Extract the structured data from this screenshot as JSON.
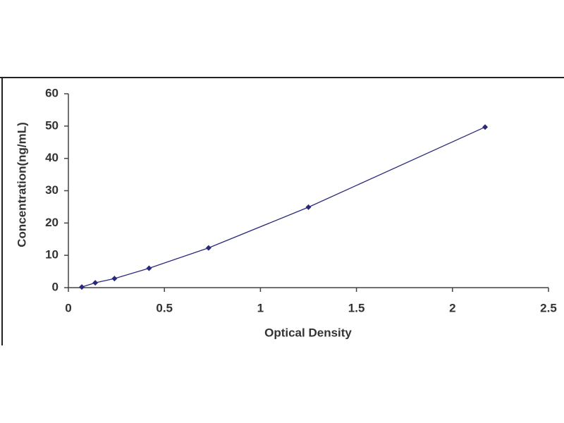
{
  "chart_data": {
    "type": "scatter",
    "x_label": "Optical Density",
    "y_label": "Concentration(ng/mL)",
    "series": [
      {
        "color": "#2a2a7a",
        "x": [
          0.07,
          0.14,
          0.24,
          0.42,
          0.73,
          1.25,
          2.17
        ],
        "values": [
          0.2,
          1.5,
          2.8,
          6,
          12.3,
          24.9,
          49.7
        ]
      }
    ],
    "line": true,
    "xlim": [
      0,
      2.5
    ],
    "xticks": [
      0,
      0.5,
      1,
      1.5,
      2,
      2.5
    ],
    "ylim": [
      0,
      60
    ],
    "yticks": [
      0,
      10,
      20,
      30,
      40,
      50,
      60
    ],
    "grid": false
  }
}
